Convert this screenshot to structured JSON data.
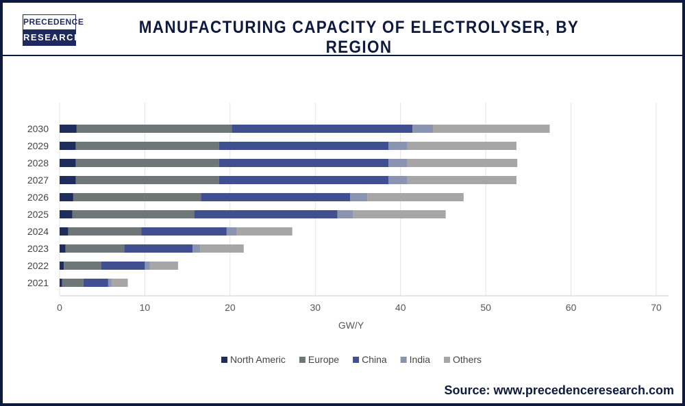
{
  "header": {
    "title": "MANUFACTURING CAPACITY OF ELECTROLYSER, BY REGION",
    "logo_top": "PRECEDENCE",
    "logo_bottom": "RESEARCH"
  },
  "source": "Source: www.precedenceresearch.com",
  "chart_data": {
    "type": "bar",
    "orientation": "horizontal",
    "stacked": true,
    "title": "",
    "xlabel": "GW/Y",
    "ylabel": "",
    "xlim": [
      0,
      70
    ],
    "xticks": [
      0,
      10,
      20,
      30,
      40,
      50,
      60,
      70
    ],
    "grid": true,
    "legend_position": "bottom",
    "categories": [
      "2021",
      "2022",
      "2023",
      "2024",
      "2025",
      "2026",
      "2027",
      "2028",
      "2029",
      "2030"
    ],
    "series": [
      {
        "name": "North Americ",
        "color": "#1f2d5c",
        "values": [
          0.3,
          0.5,
          0.7,
          1.0,
          1.5,
          1.6,
          1.9,
          1.9,
          1.9,
          2.0
        ]
      },
      {
        "name": "Europe",
        "color": "#6f7677",
        "values": [
          2.5,
          4.4,
          6.9,
          8.6,
          14.3,
          15.0,
          16.8,
          16.8,
          16.8,
          18.2
        ]
      },
      {
        "name": "China",
        "color": "#3f4f8f",
        "values": [
          2.9,
          5.1,
          8.0,
          10.0,
          16.8,
          17.5,
          19.9,
          19.9,
          19.9,
          21.2
        ]
      },
      {
        "name": "India",
        "color": "#8a93b0",
        "values": [
          0.4,
          0.6,
          0.9,
          1.2,
          1.8,
          2.0,
          2.2,
          2.2,
          2.2,
          2.4
        ]
      },
      {
        "name": "Others",
        "color": "#a6a6a6",
        "values": [
          1.9,
          3.3,
          5.1,
          6.5,
          10.9,
          11.3,
          12.8,
          12.9,
          12.8,
          13.7
        ]
      }
    ]
  }
}
